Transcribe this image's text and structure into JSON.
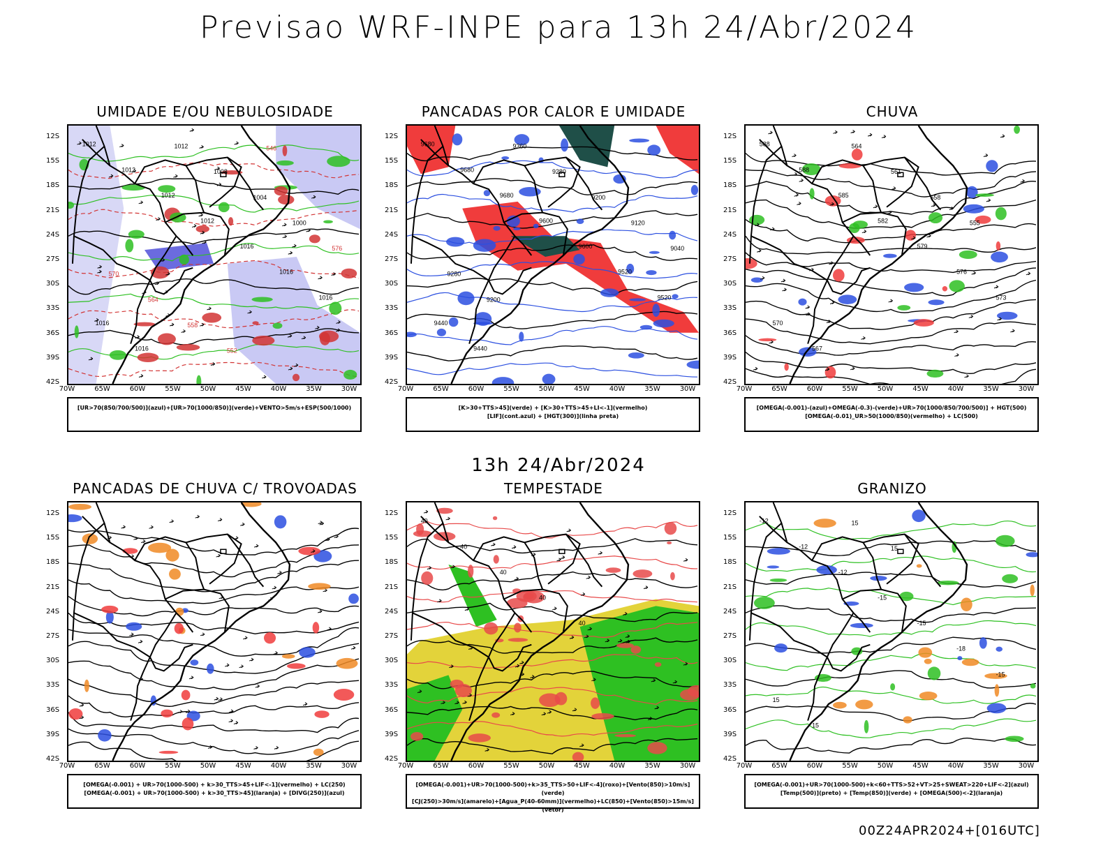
{
  "main_title": "Previsao WRF-INPE  para 13h 24/Abr/2024",
  "mid_label": "13h 24/Abr/2024",
  "footer_stamp": "00Z24APR2024+[016UTC]",
  "lat_labels": [
    "12S",
    "15S",
    "18S",
    "21S",
    "24S",
    "27S",
    "30S",
    "33S",
    "36S",
    "39S",
    "42S"
  ],
  "lon_labels": [
    "70W",
    "65W",
    "60W",
    "55W",
    "50W",
    "45W",
    "40W",
    "35W",
    "30W"
  ],
  "panels": [
    {
      "title": "UMIDADE E/OU NEBULOSIDADE",
      "legend_lines": [
        "[UR>70(850/700/500)](azul)+[UR>70(1000/850)](verde)+VENTO>5m/s+ESP(500/1000)"
      ],
      "contour_labels": [
        "1012",
        "1012",
        "1012",
        "1012",
        "1016",
        "1016",
        "1016",
        "1016",
        "1016",
        "1012",
        "1008",
        "1004",
        "1000",
        "576",
        "570",
        "564",
        "558",
        "552",
        "546"
      ]
    },
    {
      "title": "PANCADAS POR CALOR E UMIDADE",
      "legend_lines": [
        "[K>30+TTS>45](verde) + [K>30+TTS>45+LI<-1](vermelho)",
        "[LIF](cont.azul) + [HGT(300)](linha preta)"
      ],
      "contour_labels": [
        "9680",
        "9680",
        "9680",
        "9600",
        "9600",
        "9520",
        "9520",
        "9440",
        "9440",
        "9360",
        "9280",
        "9200",
        "9120",
        "9040",
        "9280",
        "9200"
      ]
    },
    {
      "title": "CHUVA",
      "legend_lines": [
        "[OMEGA(-0.001)-(azul)+OMEGA(-0.3)-(verde)+UR>70(1000/850/700/500)] + HGT(500)",
        "[OMEGA(-0.01)_UR>50(1000/850)(vermelho) + LC(500)"
      ],
      "contour_labels": [
        "588",
        "588",
        "585",
        "582",
        "579",
        "576",
        "573",
        "570",
        "567",
        "564",
        "561",
        "558",
        "555"
      ]
    },
    {
      "title": "PANCADAS DE CHUVA C/ TROVOADAS",
      "legend_lines": [
        "[OMEGA(-0.001) + UR>70(1000-500) + k>30_TTS>45+LIF<-1](vermelho) + LC(250)",
        "[OMEGA(-0.001) + UR>70(1000-500) + k>30_TTS>45](laranja) + [DIVG(250)](azul)"
      ],
      "contour_labels": []
    },
    {
      "title": "TEMPESTADE",
      "legend_lines": [
        "[OMEGA(-0.001)+UR>70(1000-500)+k>35_TTS>50+LIF<-4](roxo)+[Vento(850)>10m/s](verde)",
        "[CJ(250)>30m/s](amarelo)+[Agua_P(40-60mm)](vermelho)+LC(850)+[Vento(850)>15m/s](vetor)"
      ],
      "contour_labels": [
        "40",
        "40",
        "40",
        "40",
        "40"
      ]
    },
    {
      "title": "GRANIZO",
      "legend_lines": [
        "[OMEGA(-0.001)+UR>70(1000-500)+k<60+TTS>52+VT>25+SWEAT>220+LIF<-2](azul)",
        "[Temp(500)](preto) + [Temp(850)](verde) + [OMEGA(500)<-2](laranja)"
      ],
      "contour_labels": [
        "-12",
        "-12",
        "-12",
        "-15",
        "-15",
        "-18",
        "-15",
        "15",
        "15",
        "15",
        "15"
      ]
    }
  ]
}
